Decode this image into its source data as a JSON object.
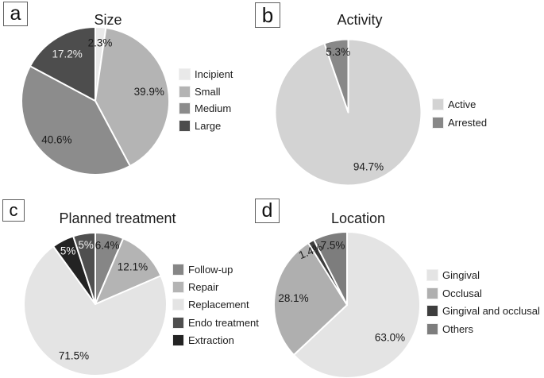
{
  "chart_data": [
    {
      "id": "size",
      "type": "pie",
      "panel_label": "a",
      "title": "Size",
      "legend_position": "right",
      "draw_order": [
        0,
        1,
        2,
        3
      ],
      "slices": [
        {
          "label": "Incipient",
          "value": 2.3,
          "value_label": "2.3%",
          "color": "#e9e9e9",
          "value_label_color": "#1a1a1a"
        },
        {
          "label": "Small",
          "value": 39.9,
          "value_label": "39.9%",
          "color": "#b4b4b4",
          "value_label_color": "#1a1a1a"
        },
        {
          "label": "Medium",
          "value": 40.6,
          "value_label": "40.6%",
          "color": "#8c8c8c",
          "value_label_color": "#1a1a1a"
        },
        {
          "label": "Large",
          "value": 17.2,
          "value_label": "17.2%",
          "color": "#4d4d4d",
          "value_label_color": "#ececec"
        }
      ]
    },
    {
      "id": "activity",
      "type": "pie",
      "panel_label": "b",
      "title": "Activity",
      "legend_position": "right",
      "draw_order": [
        0,
        1
      ],
      "slices": [
        {
          "label": "Active",
          "value": 94.7,
          "value_label": "94.7%",
          "color": "#d3d3d3",
          "value_label_color": "#1a1a1a"
        },
        {
          "label": "Arrested",
          "value": 5.3,
          "value_label": "5.3%",
          "color": "#888888",
          "value_label_color": "#1a1a1a"
        }
      ]
    },
    {
      "id": "planned-treatment",
      "type": "pie",
      "panel_label": "c",
      "title": "Planned treatment",
      "legend_position": "right",
      "draw_order": [
        0,
        1,
        2,
        4,
        3
      ],
      "slices": [
        {
          "label": "Follow-up",
          "value": 6.4,
          "value_label": "6.4%",
          "color": "#868686",
          "value_label_color": "#1a1a1a"
        },
        {
          "label": "Repair",
          "value": 12.1,
          "value_label": "12.1%",
          "color": "#b4b4b4",
          "value_label_color": "#1a1a1a"
        },
        {
          "label": "Replacement",
          "value": 71.5,
          "value_label": "71.5%",
          "color": "#e4e4e4",
          "value_label_color": "#1a1a1a"
        },
        {
          "label": "Endo treatment",
          "value": 5,
          "value_label": "5%",
          "color": "#4f4f4f",
          "value_label_color": "#f5f5f5"
        },
        {
          "label": "Extraction",
          "value": 5,
          "value_label": "5%",
          "color": "#232323",
          "value_label_color": "#f5f5f5"
        }
      ]
    },
    {
      "id": "location",
      "type": "pie",
      "panel_label": "d",
      "title": "Location",
      "legend_position": "right",
      "draw_order": [
        0,
        1,
        2,
        3
      ],
      "slices": [
        {
          "label": "Gingival",
          "value": 63.0,
          "value_label": "63.0%",
          "color": "#e4e4e4",
          "value_label_color": "#1a1a1a"
        },
        {
          "label": "Occlusal",
          "value": 28.1,
          "value_label": "28.1%",
          "color": "#afafaf",
          "value_label_color": "#1a1a1a"
        },
        {
          "label": "Gingival and occlusal",
          "value": 1.4,
          "value_label": "1.4%",
          "color": "#3e3e3e",
          "value_label_color": "#1a1a1a"
        },
        {
          "label": "Others",
          "value": 7.5,
          "value_label": "7.5%",
          "color": "#7d7d7d",
          "value_label_color": "#1a1a1a"
        }
      ]
    }
  ]
}
